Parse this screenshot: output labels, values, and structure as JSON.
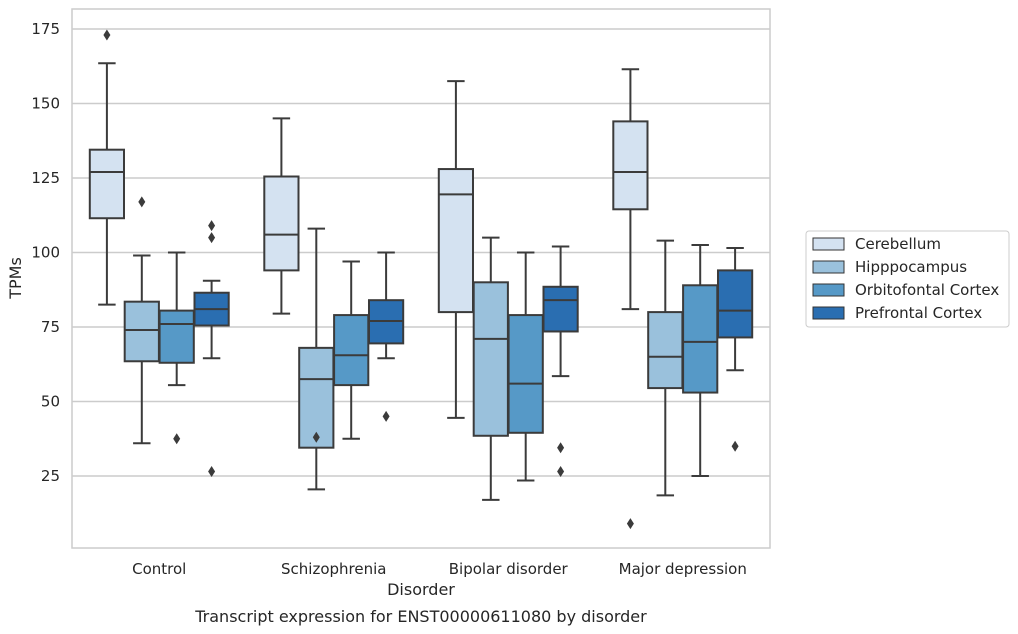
{
  "chart_data": {
    "type": "box",
    "xlabel": "Disorder",
    "ylabel": "TPMs",
    "caption": "Transcript expression for ENST00000611080 by disorder",
    "categories": [
      "Control",
      "Schizophrenia",
      "Bipolar disorder",
      "Major depression"
    ],
    "y_ticks": [
      25,
      50,
      75,
      100,
      125,
      150,
      175
    ],
    "ylim": [
      0,
      182
    ],
    "grid": "horizontal",
    "legend_position": "right",
    "series": [
      {
        "name": "Cerebellum",
        "color": "#d4e2f1",
        "boxes": [
          {
            "whisker_low": 82.5,
            "q1": 111.5,
            "median": 127,
            "q3": 134.5,
            "whisker_high": 163.5,
            "outliers": [
              173
            ]
          },
          {
            "whisker_low": 79.5,
            "q1": 94,
            "median": 106,
            "q3": 125.5,
            "whisker_high": 145,
            "outliers": []
          },
          {
            "whisker_low": 44.5,
            "q1": 80,
            "median": 119.5,
            "q3": 128,
            "whisker_high": 157.5,
            "outliers": []
          },
          {
            "whisker_low": 81,
            "q1": 114.5,
            "median": 127,
            "q3": 144,
            "whisker_high": 161.5,
            "outliers": [
              9
            ]
          }
        ]
      },
      {
        "name": "Hipppocampus",
        "color": "#9ac1dc",
        "boxes": [
          {
            "whisker_low": 36,
            "q1": 63.5,
            "median": 74,
            "q3": 83.5,
            "whisker_high": 99,
            "outliers": [
              117
            ]
          },
          {
            "whisker_low": 20.5,
            "q1": 34.5,
            "median": 57.5,
            "q3": 68,
            "whisker_high": 108,
            "outliers": [
              38
            ]
          },
          {
            "whisker_low": 17,
            "q1": 38.5,
            "median": 71,
            "q3": 90,
            "whisker_high": 105,
            "outliers": []
          },
          {
            "whisker_low": 18.5,
            "q1": 54.5,
            "median": 65,
            "q3": 80,
            "whisker_high": 104,
            "outliers": []
          }
        ]
      },
      {
        "name": "Orbitofontal Cortex",
        "color": "#5699c7",
        "boxes": [
          {
            "whisker_low": 55.5,
            "q1": 63,
            "median": 76,
            "q3": 80.5,
            "whisker_high": 100,
            "outliers": [
              37.5
            ]
          },
          {
            "whisker_low": 37.5,
            "q1": 55.5,
            "median": 65.5,
            "q3": 79,
            "whisker_high": 97,
            "outliers": []
          },
          {
            "whisker_low": 23.5,
            "q1": 39.5,
            "median": 56,
            "q3": 79,
            "whisker_high": 100,
            "outliers": []
          },
          {
            "whisker_low": 25,
            "q1": 53,
            "median": 70,
            "q3": 89,
            "whisker_high": 102.5,
            "outliers": []
          }
        ]
      },
      {
        "name": "Prefrontal Cortex",
        "color": "#2a6eb1",
        "boxes": [
          {
            "whisker_low": 64.5,
            "q1": 75.5,
            "median": 81,
            "q3": 86.5,
            "whisker_high": 90.5,
            "outliers": [
              26.5,
              105,
              109
            ]
          },
          {
            "whisker_low": 64.5,
            "q1": 69.5,
            "median": 77,
            "q3": 84,
            "whisker_high": 100,
            "outliers": [
              45
            ]
          },
          {
            "whisker_low": 58.5,
            "q1": 73.5,
            "median": 84,
            "q3": 88.5,
            "whisker_high": 102,
            "outliers": [
              26.5,
              34.5
            ]
          },
          {
            "whisker_low": 60.5,
            "q1": 71.5,
            "median": 80.5,
            "q3": 94,
            "whisker_high": 101.5,
            "outliers": [
              35
            ]
          }
        ]
      }
    ]
  }
}
